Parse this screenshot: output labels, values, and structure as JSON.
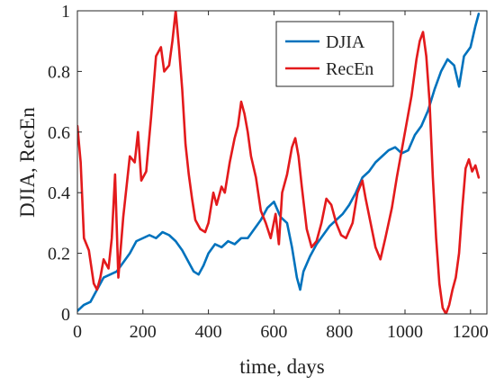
{
  "chart_data": {
    "type": "line",
    "title": "",
    "xlabel": "time, days",
    "ylabel": "DJIA, RecEn",
    "xlim": [
      0,
      1250
    ],
    "ylim": [
      0,
      1
    ],
    "x_ticks": [
      0,
      200,
      400,
      600,
      800,
      1000,
      1200
    ],
    "y_ticks": [
      0,
      0.2,
      0.4,
      0.6,
      0.8,
      1
    ],
    "x_tick_labels": [
      "0",
      "200",
      "400",
      "600",
      "800",
      "1000",
      "1200"
    ],
    "y_tick_labels": [
      "0",
      "0.2",
      "0.4",
      "0.6",
      "0.8",
      "1"
    ],
    "grid": false,
    "legend_position": "top-right",
    "series": [
      {
        "name": "DJIA",
        "color": "#0072BD",
        "points": [
          [
            0,
            0.01
          ],
          [
            20,
            0.03
          ],
          [
            40,
            0.04
          ],
          [
            60,
            0.08
          ],
          [
            80,
            0.12
          ],
          [
            100,
            0.13
          ],
          [
            120,
            0.14
          ],
          [
            140,
            0.17
          ],
          [
            160,
            0.2
          ],
          [
            180,
            0.24
          ],
          [
            200,
            0.25
          ],
          [
            220,
            0.26
          ],
          [
            240,
            0.25
          ],
          [
            260,
            0.27
          ],
          [
            280,
            0.26
          ],
          [
            300,
            0.24
          ],
          [
            320,
            0.21
          ],
          [
            340,
            0.17
          ],
          [
            355,
            0.14
          ],
          [
            370,
            0.13
          ],
          [
            385,
            0.16
          ],
          [
            400,
            0.2
          ],
          [
            420,
            0.23
          ],
          [
            440,
            0.22
          ],
          [
            460,
            0.24
          ],
          [
            480,
            0.23
          ],
          [
            500,
            0.25
          ],
          [
            520,
            0.25
          ],
          [
            540,
            0.28
          ],
          [
            560,
            0.31
          ],
          [
            580,
            0.35
          ],
          [
            600,
            0.37
          ],
          [
            620,
            0.32
          ],
          [
            640,
            0.3
          ],
          [
            655,
            0.22
          ],
          [
            670,
            0.12
          ],
          [
            680,
            0.08
          ],
          [
            690,
            0.14
          ],
          [
            710,
            0.19
          ],
          [
            730,
            0.23
          ],
          [
            750,
            0.26
          ],
          [
            770,
            0.29
          ],
          [
            790,
            0.31
          ],
          [
            810,
            0.33
          ],
          [
            830,
            0.36
          ],
          [
            850,
            0.4
          ],
          [
            870,
            0.45
          ],
          [
            890,
            0.47
          ],
          [
            910,
            0.5
          ],
          [
            930,
            0.52
          ],
          [
            950,
            0.54
          ],
          [
            970,
            0.55
          ],
          [
            990,
            0.53
          ],
          [
            1010,
            0.54
          ],
          [
            1030,
            0.59
          ],
          [
            1050,
            0.62
          ],
          [
            1070,
            0.67
          ],
          [
            1090,
            0.74
          ],
          [
            1110,
            0.8
          ],
          [
            1130,
            0.84
          ],
          [
            1150,
            0.82
          ],
          [
            1165,
            0.75
          ],
          [
            1180,
            0.85
          ],
          [
            1200,
            0.88
          ],
          [
            1215,
            0.95
          ],
          [
            1225,
            0.99
          ]
        ]
      },
      {
        "name": "RecEn",
        "color": "#E31A1C",
        "points": [
          [
            0,
            0.62
          ],
          [
            10,
            0.5
          ],
          [
            20,
            0.25
          ],
          [
            35,
            0.21
          ],
          [
            50,
            0.1
          ],
          [
            60,
            0.08
          ],
          [
            70,
            0.12
          ],
          [
            80,
            0.18
          ],
          [
            95,
            0.15
          ],
          [
            105,
            0.25
          ],
          [
            115,
            0.46
          ],
          [
            125,
            0.12
          ],
          [
            140,
            0.32
          ],
          [
            150,
            0.42
          ],
          [
            160,
            0.52
          ],
          [
            175,
            0.5
          ],
          [
            185,
            0.6
          ],
          [
            195,
            0.44
          ],
          [
            210,
            0.47
          ],
          [
            225,
            0.65
          ],
          [
            240,
            0.85
          ],
          [
            255,
            0.88
          ],
          [
            265,
            0.8
          ],
          [
            280,
            0.82
          ],
          [
            290,
            0.9
          ],
          [
            300,
            1.0
          ],
          [
            310,
            0.88
          ],
          [
            320,
            0.74
          ],
          [
            330,
            0.56
          ],
          [
            340,
            0.46
          ],
          [
            350,
            0.38
          ],
          [
            360,
            0.31
          ],
          [
            375,
            0.28
          ],
          [
            390,
            0.27
          ],
          [
            400,
            0.3
          ],
          [
            415,
            0.4
          ],
          [
            425,
            0.36
          ],
          [
            440,
            0.42
          ],
          [
            450,
            0.4
          ],
          [
            465,
            0.5
          ],
          [
            480,
            0.58
          ],
          [
            490,
            0.62
          ],
          [
            500,
            0.7
          ],
          [
            510,
            0.66
          ],
          [
            520,
            0.6
          ],
          [
            530,
            0.52
          ],
          [
            545,
            0.45
          ],
          [
            560,
            0.34
          ],
          [
            575,
            0.3
          ],
          [
            590,
            0.25
          ],
          [
            605,
            0.33
          ],
          [
            615,
            0.23
          ],
          [
            625,
            0.4
          ],
          [
            640,
            0.46
          ],
          [
            655,
            0.55
          ],
          [
            665,
            0.58
          ],
          [
            675,
            0.52
          ],
          [
            685,
            0.42
          ],
          [
            700,
            0.28
          ],
          [
            715,
            0.22
          ],
          [
            730,
            0.24
          ],
          [
            745,
            0.3
          ],
          [
            760,
            0.38
          ],
          [
            775,
            0.36
          ],
          [
            790,
            0.3
          ],
          [
            805,
            0.26
          ],
          [
            820,
            0.25
          ],
          [
            840,
            0.3
          ],
          [
            855,
            0.4
          ],
          [
            870,
            0.44
          ],
          [
            880,
            0.38
          ],
          [
            895,
            0.3
          ],
          [
            910,
            0.22
          ],
          [
            925,
            0.18
          ],
          [
            940,
            0.25
          ],
          [
            960,
            0.35
          ],
          [
            975,
            0.45
          ],
          [
            990,
            0.54
          ],
          [
            1005,
            0.63
          ],
          [
            1020,
            0.72
          ],
          [
            1035,
            0.84
          ],
          [
            1045,
            0.9
          ],
          [
            1055,
            0.93
          ],
          [
            1065,
            0.85
          ],
          [
            1075,
            0.7
          ],
          [
            1085,
            0.45
          ],
          [
            1095,
            0.25
          ],
          [
            1105,
            0.1
          ],
          [
            1115,
            0.02
          ],
          [
            1125,
            0.0
          ],
          [
            1135,
            0.03
          ],
          [
            1145,
            0.08
          ],
          [
            1155,
            0.12
          ],
          [
            1165,
            0.2
          ],
          [
            1175,
            0.35
          ],
          [
            1185,
            0.48
          ],
          [
            1195,
            0.51
          ],
          [
            1205,
            0.47
          ],
          [
            1215,
            0.49
          ],
          [
            1225,
            0.45
          ]
        ]
      }
    ]
  }
}
